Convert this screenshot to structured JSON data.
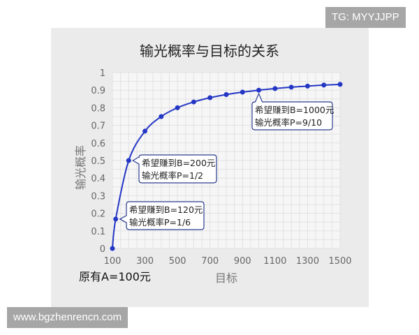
{
  "watermarks": {
    "top_right": "TG: MYYJJPP",
    "bottom_left": "www.bgzhenrencn.com"
  },
  "note": "原有A=100元",
  "chart_data": {
    "type": "line",
    "title": "输光概率与目标的关系",
    "xlabel": "目标",
    "ylabel": "输光概率",
    "xlim": [
      100,
      1500
    ],
    "ylim": [
      0,
      1
    ],
    "grid": true,
    "x_ticks": [
      "100",
      "300",
      "500",
      "700",
      "900",
      "1100",
      "1300",
      "1500"
    ],
    "y_ticks": [
      "0",
      "0.1",
      "0.2",
      "0.3",
      "0.4",
      "0.5",
      "0.6",
      "0.7",
      "0.8",
      "0.9",
      "1"
    ],
    "series": [
      {
        "x": [
          100,
          120,
          200,
          300,
          400,
          500,
          600,
          700,
          800,
          900,
          1000,
          1100,
          1200,
          1300,
          1400,
          1500
        ],
        "y": [
          0,
          0.167,
          0.5,
          0.667,
          0.75,
          0.8,
          0.833,
          0.857,
          0.875,
          0.889,
          0.9,
          0.909,
          0.917,
          0.923,
          0.929,
          0.933
        ]
      }
    ],
    "annotations": [
      {
        "x": 1000,
        "y": 0.9,
        "line1": "希望赚到B=1000元",
        "line2": "输光概率P=9/10"
      },
      {
        "x": 200,
        "y": 0.5,
        "line1": "希望赚到B=200元",
        "line2": "输光概率P=1/2"
      },
      {
        "x": 120,
        "y": 0.167,
        "line1": "希望赚到B=120元",
        "line2": "输光概率P=1/6"
      }
    ],
    "colors": {
      "line": "#2336c4",
      "panel": "#ebebeb",
      "plot": "#f6f6f6",
      "grid": "#e2e2e2",
      "callout_border": "#2a3d8f"
    }
  }
}
